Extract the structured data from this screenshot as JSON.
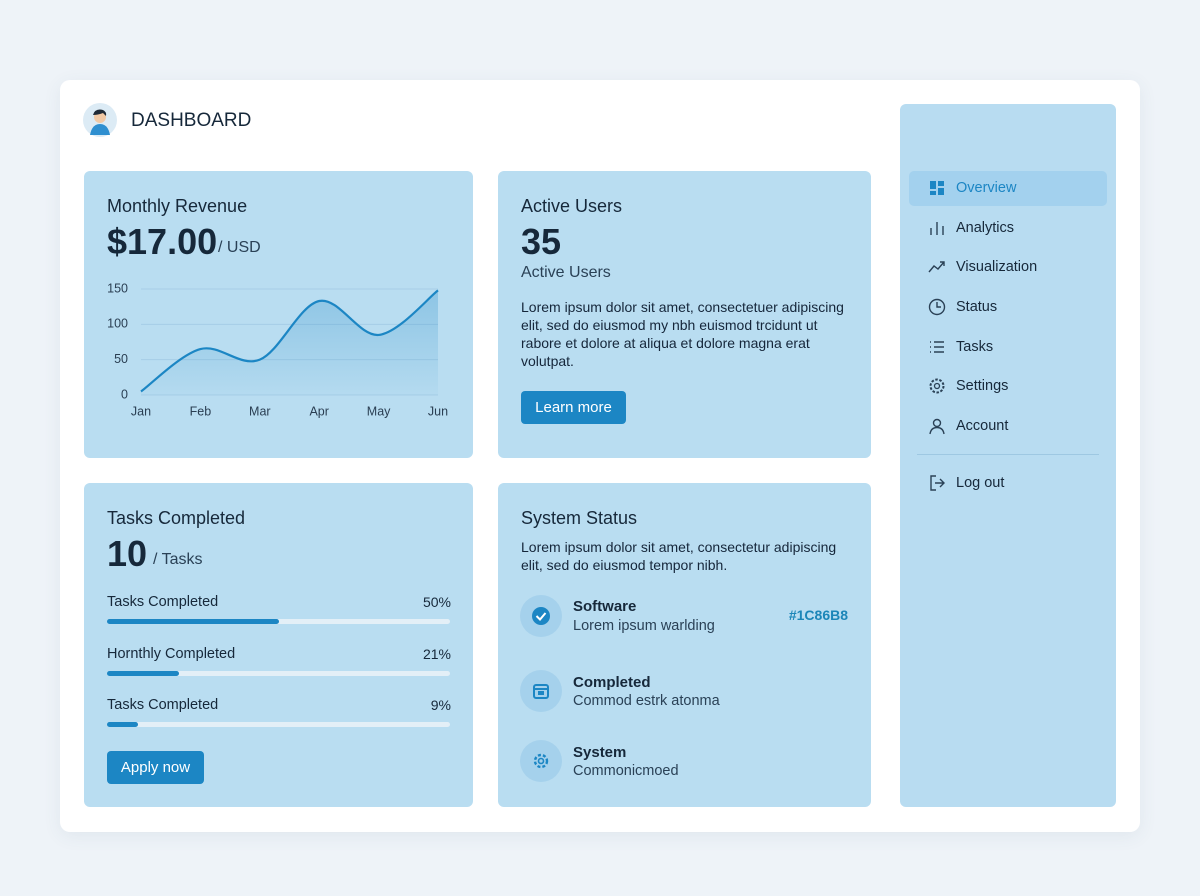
{
  "header": {
    "title": "DASHBOARD"
  },
  "revenue": {
    "title": "Monthly Revenue",
    "amount": "$17.00",
    "unit": "/ USD"
  },
  "chart_data": {
    "type": "line",
    "categories": [
      "Jan",
      "Feb",
      "Mar",
      "Apr",
      "May",
      "Jun"
    ],
    "values": [
      5,
      65,
      50,
      133,
      85,
      148
    ],
    "color": "#1c86c4",
    "ylim": [
      0,
      150
    ],
    "yticks": [
      0,
      50,
      100,
      150
    ],
    "grid": true
  },
  "users": {
    "title": "Active Users",
    "count": 35,
    "label": "Active Users",
    "text": "Lorem ipsum dolor sit amet, consectetuer adipiscing elit, sed do eiusmod my nbh euismod trcidunt ut rabore et dolore at aliqua et dolore magna erat volutpat.",
    "button": "Learn more"
  },
  "tasks": {
    "title": "Tasks Completed",
    "count": 10,
    "unit": "/ Tasks",
    "progress": [
      {
        "label": "Tasks Completed",
        "value": 50,
        "value_label": "50%"
      },
      {
        "label": "Hornthly Completed",
        "value": 21,
        "value_label": "21%"
      },
      {
        "label": "Tasks Completed",
        "value": 9,
        "value_label": "9%"
      }
    ],
    "button": "Apply now"
  },
  "status": {
    "title": "System Status",
    "text": "Lorem ipsum dolor sit amet, consectetur adipiscing elit, sed do eiusmod tempor nibh.",
    "items": [
      {
        "title": "Software",
        "subtitle": "Lorem ipsum warlding",
        "code": "#1C86B8"
      },
      {
        "title": "Completed",
        "subtitle": "Commod estrk atonma"
      },
      {
        "title": "System",
        "subtitle": "Commonicmoed"
      }
    ]
  },
  "sidebar": {
    "items": [
      "Overview",
      "Analytics",
      "Visualization",
      "Status",
      "Tasks",
      "Settings",
      "Account"
    ],
    "logout": "Log out"
  }
}
